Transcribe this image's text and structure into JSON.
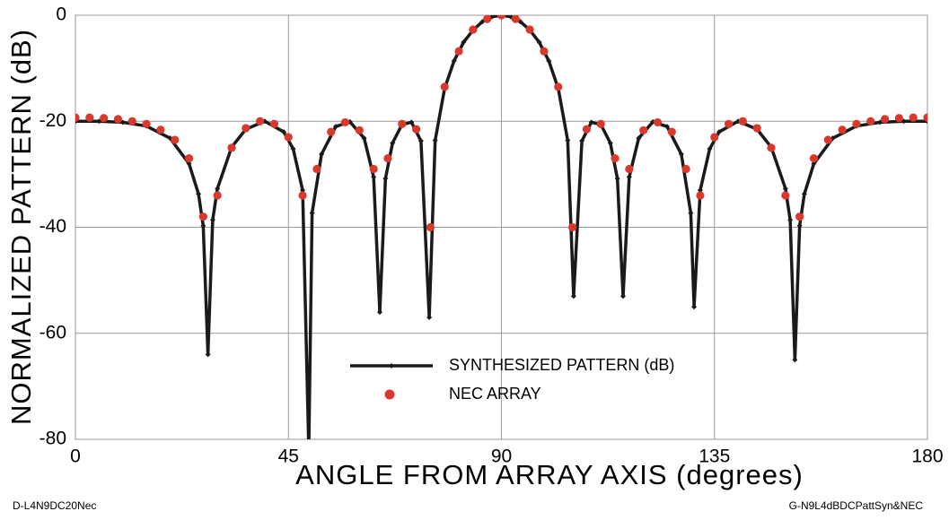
{
  "chart_data": {
    "type": "line",
    "xlabel": "ANGLE  FROM  ARRAY   AXIS  (degrees)",
    "ylabel": "NORMALIZED  PATTERN  (dB)",
    "footnote_left": "D-L4N9DC20Nec",
    "footnote_right": "G-N9L4dBDCPattSyn&NEC",
    "xlim": [
      0,
      180
    ],
    "xticks": [
      0,
      45,
      90,
      135,
      180
    ],
    "ylim": [
      -80,
      0
    ],
    "yticks": [
      0,
      -20,
      -40,
      -60,
      -80
    ],
    "grid": true,
    "legend": "bottom-center",
    "series": [
      {
        "name": "SYNTHESIZED PATTERN (dB)",
        "color": "#1a1a1a",
        "style": "line",
        "x": [
          0,
          5,
          10,
          15,
          20,
          24,
          26,
          27,
          28,
          29,
          30,
          33,
          36,
          40,
          44,
          46,
          48,
          49.3,
          50,
          52,
          55,
          58,
          61,
          63,
          64.3,
          65.5,
          67,
          69,
          71,
          73,
          74.75,
          76,
          78,
          80,
          82,
          84,
          86,
          88,
          90,
          92,
          94,
          96,
          98,
          100,
          102,
          104,
          105.25,
          107,
          109,
          111,
          113,
          114.5,
          115.7,
          117,
          119,
          122,
          125,
          128,
          130,
          130.7,
          132,
          134,
          136,
          140,
          144,
          147,
          150,
          151,
          152,
          153,
          154,
          156,
          160,
          165,
          170,
          175,
          180
        ],
        "values": [
          -20,
          -20,
          -20.2,
          -20.9,
          -23.2,
          -28,
          -33.7,
          -39.7,
          -64,
          -38.6,
          -32.7,
          -24.9,
          -21.5,
          -20,
          -22,
          -25.2,
          -33,
          -82,
          -37.3,
          -26.2,
          -21,
          -20.1,
          -23.2,
          -30.5,
          -56,
          -30.8,
          -24.1,
          -20.6,
          -20.2,
          -23.7,
          -57,
          -23.6,
          -13.8,
          -8.6,
          -5.1,
          -2.8,
          -1.2,
          -0.3,
          0,
          -0.3,
          -1.2,
          -2.8,
          -5.1,
          -8.6,
          -13.8,
          -23.6,
          -53,
          -23.7,
          -20.2,
          -20.6,
          -24.1,
          -30.8,
          -53,
          -30.5,
          -23.2,
          -20.1,
          -21,
          -26.2,
          -37.3,
          -55,
          -33,
          -25.2,
          -22,
          -20,
          -21.5,
          -24.9,
          -32.7,
          -38.6,
          -65,
          -39.7,
          -33.7,
          -28,
          -23.2,
          -20.9,
          -20.2,
          -20,
          -20
        ]
      },
      {
        "name": "NEC ARRAY",
        "color": "#d9382c",
        "style": "dot",
        "x": [
          0,
          3,
          6,
          9,
          12,
          15,
          18,
          21,
          24,
          27,
          30,
          33,
          36,
          39,
          42,
          45,
          48,
          51,
          54,
          57,
          60,
          63,
          66,
          69,
          72,
          75,
          78,
          81,
          84,
          87,
          90,
          93,
          96,
          99,
          102,
          105,
          108,
          111,
          114,
          117,
          120,
          123,
          126,
          129,
          132,
          135,
          138,
          141,
          144,
          147,
          150,
          153,
          156,
          159,
          162,
          165,
          168,
          171,
          174,
          177,
          180
        ],
        "values": [
          -19.3,
          -19.3,
          -19.4,
          -19.6,
          -20,
          -20.5,
          -21.6,
          -23.5,
          -27,
          -38,
          -34,
          -25,
          -21.3,
          -20,
          -20.5,
          -23,
          -34,
          -29,
          -22,
          -20.2,
          -21.7,
          -29,
          -27,
          -20.5,
          -21.5,
          -40,
          -13.5,
          -6.8,
          -2.7,
          -0.7,
          0,
          -0.7,
          -2.7,
          -6.8,
          -13.5,
          -40,
          -21.5,
          -20.5,
          -27,
          -29,
          -21.7,
          -20.2,
          -22,
          -29,
          -34,
          -23,
          -20.5,
          -20,
          -21.3,
          -25,
          -34,
          -38,
          -27,
          -23.5,
          -21.6,
          -20.5,
          -20,
          -19.6,
          -19.4,
          -19.3,
          -19.3
        ]
      }
    ]
  }
}
